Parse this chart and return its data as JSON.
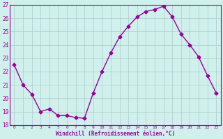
{
  "x": [
    0,
    1,
    2,
    3,
    4,
    5,
    6,
    7,
    8,
    9,
    10,
    11,
    12,
    13,
    14,
    15,
    16,
    17,
    18,
    19,
    20,
    21,
    22,
    23
  ],
  "y": [
    22.5,
    21.0,
    20.3,
    19.0,
    19.2,
    18.7,
    18.7,
    18.55,
    18.5,
    20.4,
    22.0,
    23.4,
    24.6,
    25.4,
    26.1,
    26.5,
    26.65,
    26.9,
    26.1,
    24.8,
    24.0,
    23.1,
    21.7,
    20.4
  ],
  "line_color": "#990099",
  "marker": "D",
  "marker_size": 2.5,
  "bg_color": "#cff0eb",
  "grid_color": "#aacccc",
  "xlabel": "Windchill (Refroidissement éolien,°C)",
  "xlabel_color": "#990099",
  "tick_color": "#990099",
  "ylim": [
    18,
    27
  ],
  "yticks": [
    18,
    19,
    20,
    21,
    22,
    23,
    24,
    25,
    26,
    27
  ],
  "xtick_labels": [
    "0",
    "1",
    "2",
    "3",
    "4",
    "5",
    "6",
    "7",
    "8",
    "9",
    "10",
    "11",
    "12",
    "13",
    "14",
    "15",
    "16",
    "17",
    "18",
    "19",
    "20",
    "21",
    "22",
    "23"
  ],
  "spine_color": "#990099",
  "linewidth": 1.0
}
